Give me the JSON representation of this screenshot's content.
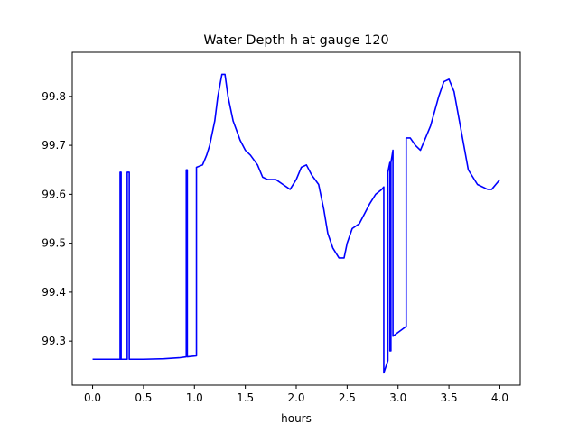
{
  "chart_data": {
    "type": "line",
    "title": "Water Depth h at gauge 120",
    "xlabel": "hours",
    "ylabel": "",
    "xlim": [
      -0.2,
      4.2
    ],
    "ylim": [
      99.21,
      99.89
    ],
    "xticks": [
      0.0,
      0.5,
      1.0,
      1.5,
      2.0,
      2.5,
      3.0,
      3.5,
      4.0
    ],
    "xtick_labels": [
      "0.0",
      "0.5",
      "1.0",
      "1.5",
      "2.0",
      "2.5",
      "3.0",
      "3.5",
      "4.0"
    ],
    "yticks": [
      99.3,
      99.4,
      99.5,
      99.6,
      99.7,
      99.8
    ],
    "ytick_labels": [
      "99.3",
      "99.4",
      "99.5",
      "99.6",
      "99.7",
      "99.8"
    ],
    "grid": false,
    "line_color": "#0000ff",
    "series": [
      {
        "x": [
          0.0,
          0.27,
          0.27,
          0.28,
          0.28,
          0.29,
          0.29,
          0.34,
          0.34,
          0.36,
          0.36,
          0.5,
          0.7,
          0.85,
          0.92,
          0.92,
          0.93,
          0.93,
          1.02,
          1.02,
          1.08,
          1.12,
          1.15,
          1.2,
          1.23,
          1.27,
          1.3,
          1.33,
          1.38,
          1.45,
          1.5,
          1.55,
          1.62,
          1.67,
          1.72,
          1.8,
          1.87,
          1.94,
          2.0,
          2.05,
          2.1,
          2.15,
          2.22,
          2.27,
          2.31,
          2.36,
          2.42,
          2.47,
          2.5,
          2.55,
          2.62,
          2.67,
          2.72,
          2.78,
          2.84,
          2.86,
          2.86,
          2.9,
          2.9,
          2.92,
          2.92,
          2.93,
          2.93,
          2.95,
          2.95,
          3.08,
          3.08,
          3.12,
          3.17,
          3.22,
          3.32,
          3.4,
          3.45,
          3.5,
          3.55,
          3.62,
          3.69,
          3.78,
          3.88,
          3.92,
          3.96,
          4.0
        ],
        "y": [
          99.263,
          99.263,
          99.645,
          99.645,
          99.263,
          99.263,
          99.263,
          99.263,
          99.645,
          99.645,
          99.263,
          99.263,
          99.264,
          99.266,
          99.268,
          99.65,
          99.65,
          99.268,
          99.27,
          99.655,
          99.66,
          99.68,
          99.7,
          99.75,
          99.8,
          99.845,
          99.845,
          99.8,
          99.75,
          99.71,
          99.69,
          99.68,
          99.66,
          99.635,
          99.63,
          99.63,
          99.62,
          99.61,
          99.63,
          99.655,
          99.66,
          99.64,
          99.62,
          99.57,
          99.52,
          99.49,
          99.47,
          99.47,
          99.5,
          99.53,
          99.54,
          99.56,
          99.58,
          99.6,
          99.61,
          99.615,
          99.235,
          99.26,
          99.645,
          99.665,
          99.28,
          99.28,
          99.665,
          99.69,
          99.31,
          99.33,
          99.715,
          99.715,
          99.7,
          99.69,
          99.74,
          99.8,
          99.83,
          99.835,
          99.81,
          99.73,
          99.65,
          99.62,
          99.61,
          99.61,
          99.62,
          99.63
        ]
      }
    ]
  }
}
